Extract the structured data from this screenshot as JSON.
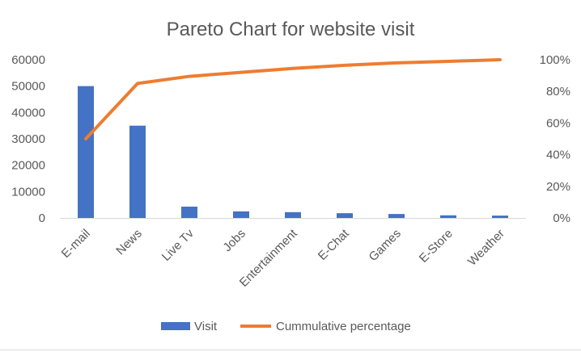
{
  "chart_data": {
    "type": "bar",
    "title": "Pareto Chart for website visit",
    "categories": [
      "E-mail",
      "News",
      "Live Tv",
      "Jobs",
      "Entertainment",
      "E-Chat",
      "Games",
      "E-Store",
      "Weather"
    ],
    "series": [
      {
        "name": "Visit",
        "type": "bar",
        "axis": "left",
        "color": "#4472C4",
        "values": [
          50000,
          35000,
          4300,
          2500,
          2200,
          1800,
          1500,
          1000,
          900
        ]
      },
      {
        "name": "Cummulative percentage",
        "type": "line",
        "axis": "right",
        "color": "#ED7D31",
        "values": [
          50,
          85,
          89.5,
          92,
          94.5,
          96.5,
          98,
          99,
          100
        ]
      }
    ],
    "y_left": {
      "range": [
        0,
        60000
      ],
      "ticks": [
        0,
        10000,
        20000,
        30000,
        40000,
        50000,
        60000
      ],
      "tick_labels": [
        "0",
        "10000",
        "20000",
        "30000",
        "40000",
        "50000",
        "60000"
      ]
    },
    "y_right": {
      "range": [
        0,
        100
      ],
      "ticks": [
        0,
        20,
        40,
        60,
        80,
        100
      ],
      "tick_labels": [
        "0%",
        "20%",
        "40%",
        "60%",
        "80%",
        "100%"
      ]
    },
    "xlabel": "",
    "ylabel": "",
    "grid": false,
    "legend": "bottom"
  }
}
